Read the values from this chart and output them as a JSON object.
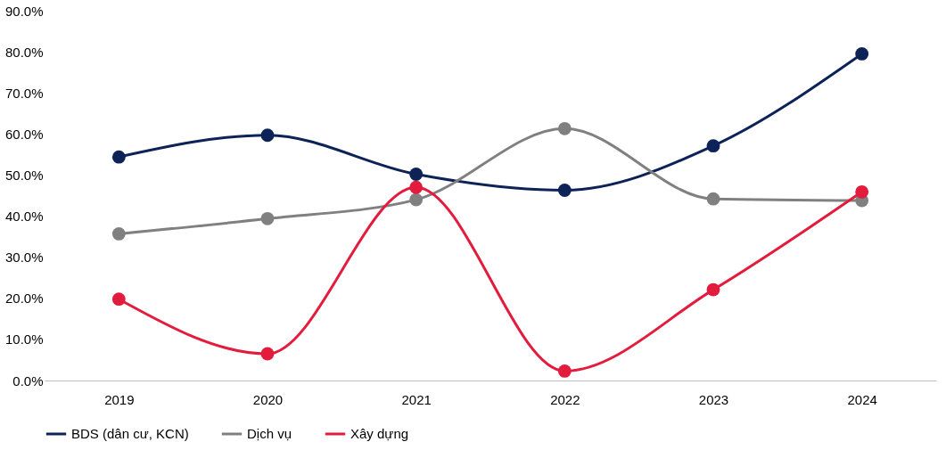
{
  "chart_data": {
    "type": "line",
    "categories": [
      "2019",
      "2020",
      "2021",
      "2022",
      "2023",
      "2024"
    ],
    "series": [
      {
        "name": "BDS (dân cư, KCN)",
        "color": "#0d2257",
        "values": [
          54.4,
          59.7,
          50.2,
          46.3,
          57.1,
          79.5
        ]
      },
      {
        "name": "Dịch vụ",
        "color": "#808080",
        "values": [
          35.7,
          39.4,
          44.0,
          61.3,
          44.2,
          43.8
        ]
      },
      {
        "name": "Xây dựng",
        "color": "#e31b3c",
        "values": [
          19.8,
          6.5,
          47.0,
          2.3,
          22.1,
          45.9
        ]
      }
    ],
    "ylim": [
      0,
      90
    ],
    "yticks": [
      {
        "value": 0,
        "label": "0.0%"
      },
      {
        "value": 10,
        "label": "10.0%"
      },
      {
        "value": 20,
        "label": "20.0%"
      },
      {
        "value": 30,
        "label": "30.0%"
      },
      {
        "value": 40,
        "label": "40.0%"
      },
      {
        "value": 50,
        "label": "50.0%"
      },
      {
        "value": 60,
        "label": "60.0%"
      },
      {
        "value": 70,
        "label": "70.0%"
      },
      {
        "value": 80,
        "label": "80.0%"
      },
      {
        "value": 90,
        "label": "90.0%"
      }
    ],
    "grid": false,
    "legend": "bottom",
    "marker": "circle",
    "line_style": "solid"
  }
}
